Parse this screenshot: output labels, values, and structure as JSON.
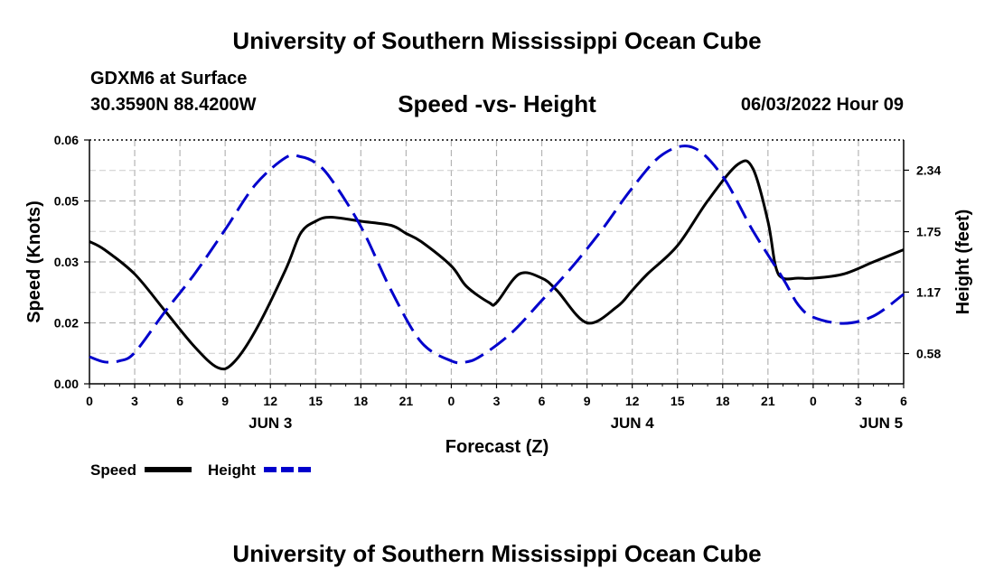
{
  "page": {
    "title": "University of Southern Mississippi Ocean Cube",
    "footer_title": "University of Southern Mississippi Ocean Cube",
    "station": "GDXM6 at Surface",
    "coordinates": "30.3590N  88.4200W",
    "subtitle": "Speed -vs- Height",
    "datetime": "06/03/2022 Hour 09"
  },
  "chart_data": {
    "type": "line",
    "title": "Speed -vs- Height",
    "xlabel": "Forecast (Z)",
    "ylabel": "Speed (Knots)",
    "y2label": "Height (feet)",
    "xlim": [
      0,
      54
    ],
    "ylim": [
      0,
      0.06
    ],
    "y2lim": [
      0.29,
      2.63
    ],
    "grid": true,
    "x_ticks": [
      0,
      3,
      6,
      9,
      12,
      15,
      18,
      21,
      24,
      27,
      30,
      33,
      36,
      39,
      42,
      45,
      48,
      51,
      54
    ],
    "x_tick_labels": [
      "0",
      "3",
      "6",
      "9",
      "12",
      "15",
      "18",
      "21",
      "0",
      "3",
      "6",
      "9",
      "12",
      "15",
      "18",
      "21",
      "0",
      "3",
      "6"
    ],
    "day_labels": [
      {
        "x": 12,
        "label": "JUN 3"
      },
      {
        "x": 36,
        "label": "JUN 4"
      },
      {
        "x": 52.5,
        "label": "JUN 5"
      }
    ],
    "y_ticks": [
      0,
      0.015,
      0.03,
      0.045,
      0.06
    ],
    "y_tick_labels": [
      "0.00",
      "0.02",
      "0.03",
      "0.05",
      "0.06"
    ],
    "y2_ticks": [
      0.58,
      1.17,
      1.75,
      2.34
    ],
    "y2_tick_labels": [
      "0.58",
      "1.17",
      "1.75",
      "2.34"
    ],
    "series": [
      {
        "name": "Speed",
        "axis": "left",
        "color": "#000000",
        "dash": "solid",
        "x": [
          0,
          1,
          3,
          5,
          7,
          8.5,
          9.5,
          11,
          13,
          14,
          15,
          16,
          18,
          20,
          21,
          22,
          24,
          25,
          26.5,
          27,
          28.5,
          30,
          31,
          33,
          35,
          36,
          37,
          39,
          41,
          43,
          44,
          45,
          45.5,
          46,
          47,
          48,
          50,
          52,
          54
        ],
        "y": [
          0.035,
          0.033,
          0.027,
          0.018,
          0.009,
          0.004,
          0.005,
          0.013,
          0.028,
          0.037,
          0.04,
          0.041,
          0.04,
          0.039,
          0.037,
          0.035,
          0.029,
          0.024,
          0.02,
          0.02,
          0.027,
          0.026,
          0.023,
          0.015,
          0.019,
          0.023,
          0.027,
          0.034,
          0.045,
          0.054,
          0.053,
          0.04,
          0.029,
          0.026,
          0.026,
          0.026,
          0.027,
          0.03,
          0.033
        ]
      },
      {
        "name": "Height",
        "axis": "right",
        "color": "#0000cc",
        "dash": "dashed",
        "x": [
          0,
          1,
          2,
          3,
          5,
          7,
          9,
          11,
          13,
          14,
          15,
          16,
          18,
          20,
          22,
          24,
          25,
          26,
          28,
          30,
          32,
          34,
          36,
          38,
          40,
          42,
          44,
          46,
          47,
          48,
          50,
          52,
          54
        ],
        "y": [
          0.55,
          0.5,
          0.51,
          0.59,
          0.98,
          1.35,
          1.77,
          2.2,
          2.46,
          2.47,
          2.41,
          2.26,
          1.8,
          1.19,
          0.69,
          0.51,
          0.5,
          0.56,
          0.78,
          1.09,
          1.41,
          1.77,
          2.17,
          2.49,
          2.56,
          2.28,
          1.76,
          1.3,
          1.05,
          0.93,
          0.87,
          0.94,
          1.15
        ]
      }
    ],
    "legend": [
      {
        "label": "Speed",
        "color": "#000000",
        "dash": "solid"
      },
      {
        "label": "Height",
        "color": "#0000cc",
        "dash": "dashed"
      }
    ],
    "legend_position": "bottom-left"
  }
}
